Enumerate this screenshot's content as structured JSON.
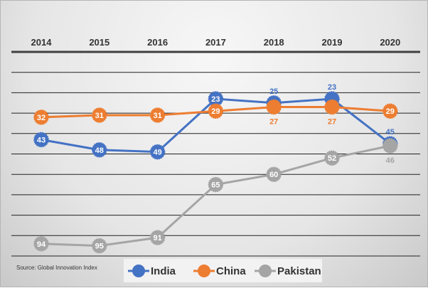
{
  "chart_data": {
    "type": "line",
    "title": "",
    "x": [
      "2014",
      "2015",
      "2016",
      "2017",
      "2018",
      "2019",
      "2020"
    ],
    "y_axis": {
      "range": [
        0,
        100
      ],
      "inverted": true,
      "gridline_step": 10,
      "tick_labels_shown": false
    },
    "grid": true,
    "legend_position": "bottom",
    "series": [
      {
        "name": "India",
        "color": "#4472c4",
        "values": [
          43,
          48,
          49,
          23,
          25,
          23,
          45
        ]
      },
      {
        "name": "China",
        "color": "#ed7d31",
        "values": [
          32,
          31,
          31,
          29,
          27,
          27,
          29
        ]
      },
      {
        "name": "Pakistan",
        "color": "#a5a5a5",
        "values": [
          94,
          95,
          91,
          65,
          60,
          52,
          46
        ]
      }
    ],
    "source": "Source: Global Innovation Index"
  }
}
